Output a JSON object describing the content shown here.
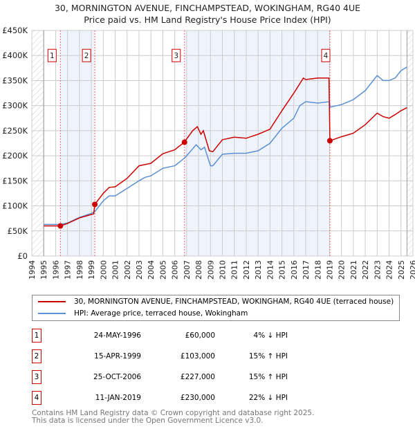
{
  "title_line1": "30, MORNINGTON AVENUE, FINCHAMPSTEAD, WOKINGHAM, RG40 4UE",
  "title_line2": "Price paid vs. HM Land Registry's House Price Index (HPI)",
  "chart_data": {
    "type": "line",
    "xlim": [
      1994,
      2026
    ],
    "ylim": [
      0,
      450000
    ],
    "x_ticks": [
      "1994",
      "1995",
      "1996",
      "1997",
      "1998",
      "1999",
      "2000",
      "2001",
      "2002",
      "2003",
      "2004",
      "2005",
      "2006",
      "2007",
      "2008",
      "2009",
      "2010",
      "2011",
      "2012",
      "2013",
      "2014",
      "2015",
      "2016",
      "2017",
      "2018",
      "2019",
      "2020",
      "2021",
      "2022",
      "2023",
      "2024",
      "2025",
      "2026"
    ],
    "y_ticks": [
      {
        "v": 0,
        "label": "£0"
      },
      {
        "v": 50000,
        "label": "£50K"
      },
      {
        "v": 100000,
        "label": "£100K"
      },
      {
        "v": 150000,
        "label": "£150K"
      },
      {
        "v": 200000,
        "label": "£200K"
      },
      {
        "v": 250000,
        "label": "£250K"
      },
      {
        "v": 300000,
        "label": "£300K"
      },
      {
        "v": 350000,
        "label": "£350K"
      },
      {
        "v": 400000,
        "label": "£400K"
      },
      {
        "v": 450000,
        "label": "£450K"
      }
    ],
    "data_start": 1995,
    "data_end": 2025.5,
    "series": [
      {
        "name": "30, MORNINGTON AVENUE, FINCHAMPSTEAD, WOKINGHAM, RG40 4UE (terraced house)",
        "color": "#cc0000",
        "x": [
          1995,
          1996.4,
          1997,
          1998,
          1999.2,
          1999.29,
          2000,
          2000.5,
          2001,
          2002,
          2003,
          2004,
          2005,
          2006,
          2006.8,
          2007.5,
          2007.9,
          2008.2,
          2008.4,
          2008.9,
          2009.2,
          2010,
          2011,
          2012,
          2013,
          2014,
          2015,
          2016,
          2016.8,
          2017,
          2018,
          2018.95,
          2019.03,
          2020,
          2021,
          2022,
          2023,
          2023.5,
          2024,
          2024.5,
          2025,
          2025.5
        ],
        "y": [
          60000,
          60000,
          65000,
          76000,
          84000,
          103000,
          125000,
          137000,
          138000,
          155000,
          180000,
          185000,
          204000,
          212000,
          227000,
          250000,
          258000,
          243000,
          250000,
          210000,
          208000,
          232000,
          237000,
          235000,
          243000,
          253000,
          290000,
          325000,
          355000,
          352000,
          355000,
          355000,
          230000,
          238000,
          245000,
          262000,
          285000,
          278000,
          275000,
          282000,
          290000,
          296000
        ]
      },
      {
        "name": "HPI: Average price, terraced house, Wokingham",
        "color": "#5b8fd4",
        "x": [
          1995,
          1996,
          1996.4,
          1997,
          1998,
          1999,
          1999.3,
          2000,
          2000.5,
          2001,
          2002,
          2003,
          2003.5,
          2004,
          2005,
          2006,
          2006.8,
          2007,
          2007.8,
          2008.2,
          2008.5,
          2009,
          2009.2,
          2010,
          2011,
          2012,
          2013,
          2014,
          2015,
          2016,
          2016.5,
          2017,
          2018,
          2019,
          2019.05,
          2020,
          2021,
          2022,
          2023,
          2023.5,
          2024,
          2024.5,
          2025,
          2025.5
        ],
        "y": [
          63000,
          63000,
          63000,
          66000,
          77000,
          85000,
          89000,
          110000,
          120000,
          120000,
          135000,
          150000,
          157000,
          160000,
          175000,
          180000,
          195000,
          200000,
          222000,
          212000,
          217000,
          180000,
          180000,
          203000,
          205000,
          205000,
          210000,
          225000,
          255000,
          275000,
          300000,
          308000,
          305000,
          308000,
          297000,
          302000,
          312000,
          330000,
          360000,
          350000,
          350000,
          355000,
          370000,
          377000
        ]
      }
    ],
    "sales": [
      {
        "n": "1",
        "x": 1996.4,
        "y": 60000
      },
      {
        "n": "2",
        "x": 1999.29,
        "y": 103000
      },
      {
        "n": "3",
        "x": 2006.82,
        "y": 227000
      },
      {
        "n": "4",
        "x": 2019.03,
        "y": 230000
      }
    ],
    "shaded": [
      [
        1996.4,
        1999.29
      ],
      [
        2006.82,
        2019.03
      ]
    ]
  },
  "legend": {
    "red": "30, MORNINGTON AVENUE, FINCHAMPSTEAD, WOKINGHAM, RG40 4UE (terraced house)",
    "blue": "HPI: Average price, terraced house, Wokingham"
  },
  "transactions": [
    {
      "n": "1",
      "date": "24-MAY-1996",
      "price": "£60,000",
      "hpi": "4% ↓ HPI"
    },
    {
      "n": "2",
      "date": "15-APR-1999",
      "price": "£103,000",
      "hpi": "15% ↑ HPI"
    },
    {
      "n": "3",
      "date": "25-OCT-2006",
      "price": "£227,000",
      "hpi": "15% ↑ HPI"
    },
    {
      "n": "4",
      "date": "11-JAN-2019",
      "price": "£230,000",
      "hpi": "22% ↓ HPI"
    }
  ],
  "footer1": "Contains HM Land Registry data © Crown copyright and database right 2025.",
  "footer2": "This data is licensed under the Open Government Licence v3.0."
}
